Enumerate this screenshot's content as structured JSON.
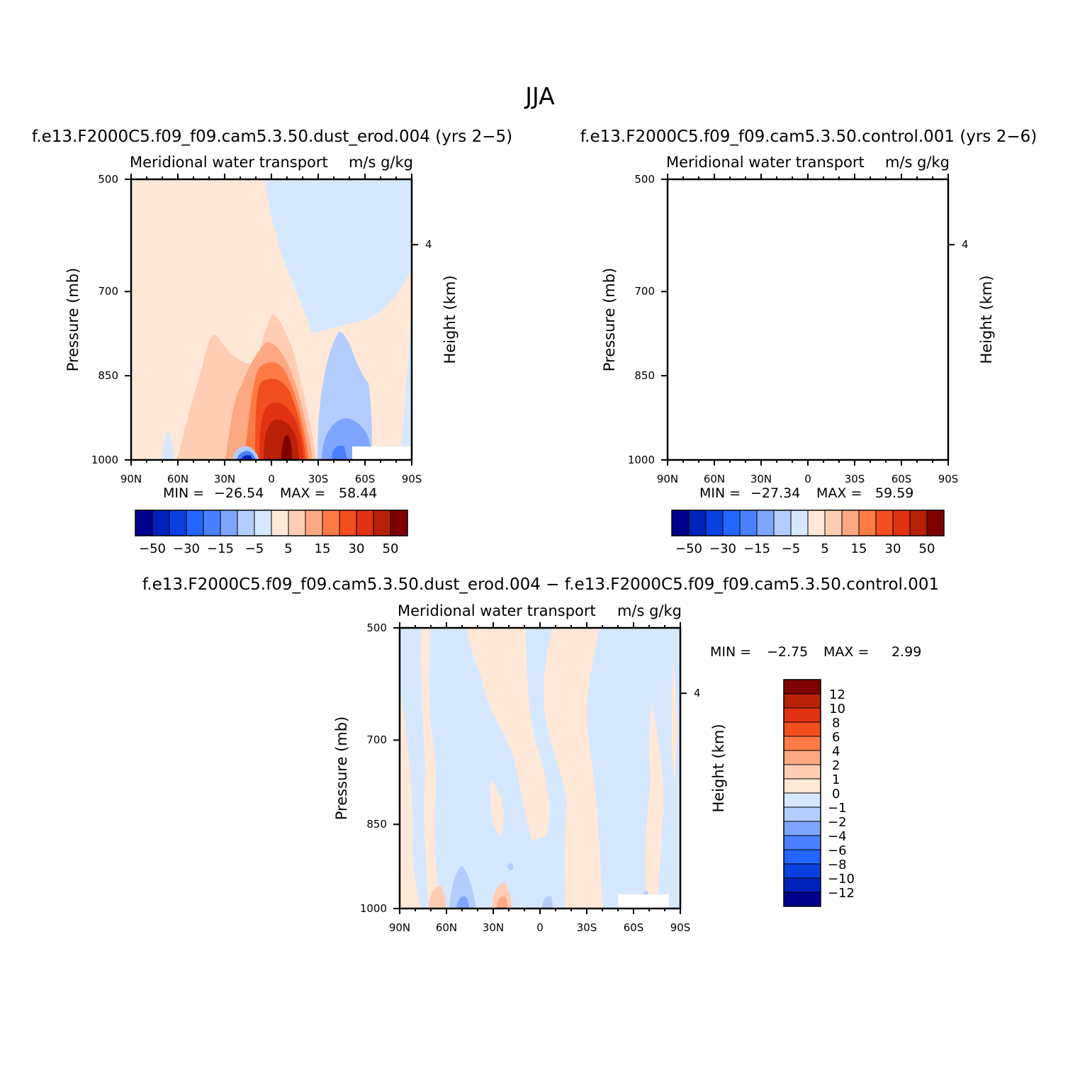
{
  "figure": {
    "title": "JJA"
  },
  "colors": {
    "abs_palette": [
      "#00008b",
      "#0022bb",
      "#0a3fe0",
      "#2266ff",
      "#4a80ff",
      "#7ea6ff",
      "#b3cdff",
      "#d6e8ff",
      "#ffe8d8",
      "#ffcdb3",
      "#fca882",
      "#ff7b45",
      "#f24e1e",
      "#e03212",
      "#b82007",
      "#800000"
    ],
    "diff_palette": [
      "#00008b",
      "#0022bb",
      "#0a3fe0",
      "#2266ff",
      "#4a80ff",
      "#7ea6ff",
      "#b3cdff",
      "#d6e8ff",
      "#ffe8d8",
      "#ffcdb3",
      "#fca882",
      "#ff7b45",
      "#f24e1e",
      "#e03212",
      "#b82007",
      "#800000"
    ]
  },
  "chart_data": [
    {
      "id": "panel-dust",
      "type": "heatmap",
      "subtitle": "f.e13.F2000C5.f09_f09.cam5.3.50.dust_erod.004 (yrs 2−5)",
      "left_label": "Meridional water transport",
      "right_label": "m/s g/kg",
      "ylabel": "Pressure (mb)",
      "ylabel_right": "Height (km)",
      "x_ticks": [
        "90N",
        "60N",
        "30N",
        "0",
        "30S",
        "60S",
        "90S"
      ],
      "y_ticks": [
        "500",
        "700",
        "850",
        "1000"
      ],
      "y_right_ticks": [
        "4"
      ],
      "stats": {
        "min_label": "MIN =",
        "min": "−26.54",
        "max_label": "MAX =",
        "max": "58.44"
      },
      "colorbar_labels": [
        "−50",
        "−30",
        "−15",
        "−5",
        "5",
        "15",
        "30",
        "50"
      ]
    },
    {
      "id": "panel-control",
      "type": "heatmap",
      "subtitle": "f.e13.F2000C5.f09_f09.cam5.3.50.control.001 (yrs 2−6)",
      "left_label": "Meridional water transport",
      "right_label": "m/s g/kg",
      "ylabel": "Pressure (mb)",
      "ylabel_right": "Height (km)",
      "x_ticks": [
        "90N",
        "60N",
        "30N",
        "0",
        "30S",
        "60S",
        "90S"
      ],
      "y_ticks": [
        "500",
        "700",
        "850",
        "1000"
      ],
      "y_right_ticks": [
        "4"
      ],
      "stats": {
        "min_label": "MIN =",
        "min": "−27.34",
        "max_label": "MAX =",
        "max": "59.59"
      },
      "colorbar_labels": [
        "−50",
        "−30",
        "−15",
        "−5",
        "5",
        "15",
        "30",
        "50"
      ]
    },
    {
      "id": "panel-diff",
      "type": "heatmap",
      "subtitle": "f.e13.F2000C5.f09_f09.cam5.3.50.dust_erod.004 − f.e13.F2000C5.f09_f09.cam5.3.50.control.001",
      "left_label": "Meridional water transport",
      "right_label": "m/s g/kg",
      "ylabel": "Pressure (mb)",
      "ylabel_right": "Height (km)",
      "x_ticks": [
        "90N",
        "60N",
        "30N",
        "0",
        "30S",
        "60S",
        "90S"
      ],
      "y_ticks": [
        "500",
        "700",
        "850",
        "1000"
      ],
      "y_right_ticks": [
        "4"
      ],
      "stats": {
        "min_label": "MIN =",
        "min": "−2.75",
        "max_label": "MAX =",
        "max": "2.99"
      },
      "colorbar_labels": [
        "12",
        "10",
        "8",
        "6",
        "4",
        "2",
        "1",
        "0",
        "−1",
        "−2",
        "−4",
        "−6",
        "−8",
        "−10",
        "−12"
      ]
    }
  ]
}
